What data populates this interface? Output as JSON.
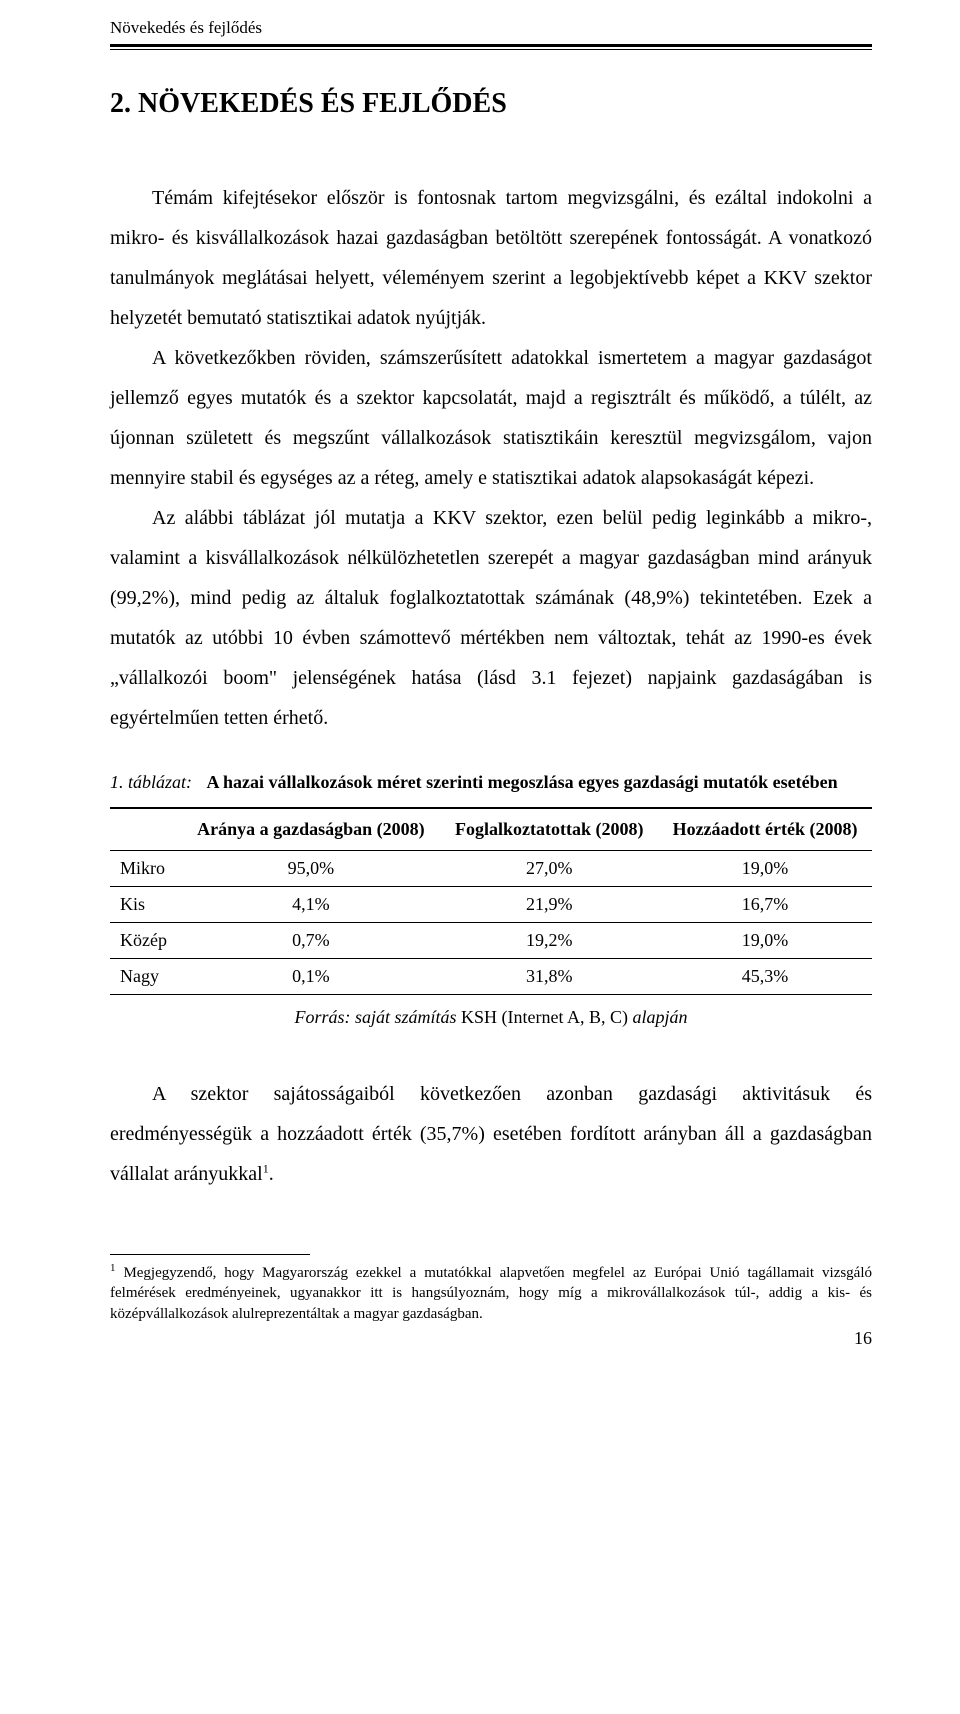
{
  "header": {
    "running_head": "Növekedés és fejlődés"
  },
  "section": {
    "title": "2. NÖVEKEDÉS ÉS FEJLŐDÉS"
  },
  "paragraphs": {
    "p1": "Témám kifejtésekor először is fontosnak tartom megvizsgálni, és ezáltal indokolni a mikro- és kisvállalkozások hazai gazdaságban betöltött szerepének fontosságát. A vonatkozó tanulmányok meglátásai helyett, véleményem szerint a legobjektívebb képet a KKV szektor helyzetét bemutató statisztikai adatok nyújtják.",
    "p2": "A következőkben röviden, számszerűsített adatokkal ismertetem a magyar gazdaságot jellemző egyes mutatók és a szektor kapcsolatát, majd a regisztrált és működő, a túlélt, az újonnan született és megszűnt vállalkozások statisztikáin keresztül megvizsgálom, vajon mennyire stabil és egységes az a réteg, amely e statisztikai adatok alapsokaságát képezi.",
    "p3": "Az alábbi táblázat jól mutatja a KKV szektor, ezen belül pedig leginkább a mikro-, valamint a kisvállalkozások nélkülözhetetlen szerepét a magyar gazdaságban mind arányuk (99,2%), mind pedig az általuk foglalkoztatottak számának (48,9%) tekintetében. Ezek a mutatók az utóbbi 10 évben számottevő mértékben nem változtak, tehát az 1990-es évek „vállalkozói boom\" jelenségének hatása (lásd 3.1 fejezet) napjaink gazdaságában is egyértelműen tetten érhető.",
    "p4a": "A szektor sajátosságaiból következően azonban gazdasági aktivitásuk és eredményességük a hozzáadott érték (35,7%) esetében fordított arányban áll a gazdaságban vállalat arányukkal",
    "p4b": "."
  },
  "table": {
    "caption_lead": "1. táblázat:",
    "caption_title": "A hazai vállalkozások méret szerinti megoszlása egyes gazdasági mutatók esetében",
    "columns": [
      "",
      "Aránya a gazdaságban (2008)",
      "Foglalkoztatottak (2008)",
      "Hozzáadott érték (2008)"
    ],
    "rows": [
      {
        "label": "Mikro",
        "c1": "95,0%",
        "c2": "27,0%",
        "c3": "19,0%"
      },
      {
        "label": "Kis",
        "c1": "4,1%",
        "c2": "21,9%",
        "c3": "16,7%"
      },
      {
        "label": "Közép",
        "c1": "0,7%",
        "c2": "19,2%",
        "c3": "19,0%"
      },
      {
        "label": "Nagy",
        "c1": "0,1%",
        "c2": "31,8%",
        "c3": "45,3%"
      }
    ],
    "source_italic": "Forrás: saját számítás ",
    "source_plain": "KSH (Internet A, B, C) ",
    "source_italic2": "alapján"
  },
  "footnote": {
    "marker": "1",
    "text": "Megjegyzendő, hogy Magyarország ezekkel a mutatókkal alapvetően megfelel az Európai Unió tagállamait vizsgáló felmérések eredményeinek, ugyanakkor itt is hangsúlyoznám, hogy míg a mikrovállalkozások túl-, addig a kis- és középvállalkozások alulreprezentáltak a magyar gazdaságban."
  },
  "page_number": "16"
}
